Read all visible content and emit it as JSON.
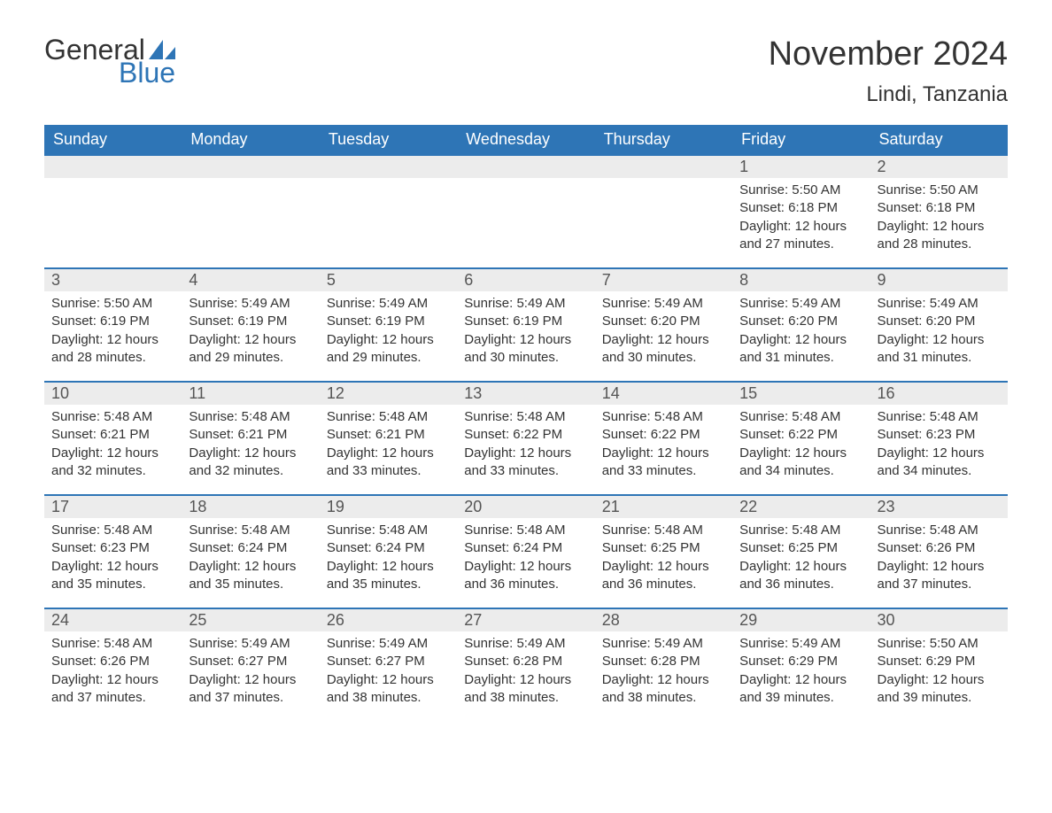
{
  "logo": {
    "word1": "General",
    "word2": "Blue"
  },
  "title": "November 2024",
  "location": "Lindi, Tanzania",
  "colors": {
    "brand_blue": "#2e75b6",
    "header_text": "#ffffff",
    "dayrow_bg": "#ececec",
    "text": "#333333",
    "muted": "#555555",
    "background": "#ffffff"
  },
  "columns": [
    "Sunday",
    "Monday",
    "Tuesday",
    "Wednesday",
    "Thursday",
    "Friday",
    "Saturday"
  ],
  "labels": {
    "sunrise": "Sunrise:",
    "sunset": "Sunset:",
    "daylight": "Daylight:"
  },
  "weeks": [
    [
      null,
      null,
      null,
      null,
      null,
      {
        "d": "1",
        "sr": "5:50 AM",
        "ss": "6:18 PM",
        "dl": "12 hours and 27 minutes."
      },
      {
        "d": "2",
        "sr": "5:50 AM",
        "ss": "6:18 PM",
        "dl": "12 hours and 28 minutes."
      }
    ],
    [
      {
        "d": "3",
        "sr": "5:50 AM",
        "ss": "6:19 PM",
        "dl": "12 hours and 28 minutes."
      },
      {
        "d": "4",
        "sr": "5:49 AM",
        "ss": "6:19 PM",
        "dl": "12 hours and 29 minutes."
      },
      {
        "d": "5",
        "sr": "5:49 AM",
        "ss": "6:19 PM",
        "dl": "12 hours and 29 minutes."
      },
      {
        "d": "6",
        "sr": "5:49 AM",
        "ss": "6:19 PM",
        "dl": "12 hours and 30 minutes."
      },
      {
        "d": "7",
        "sr": "5:49 AM",
        "ss": "6:20 PM",
        "dl": "12 hours and 30 minutes."
      },
      {
        "d": "8",
        "sr": "5:49 AM",
        "ss": "6:20 PM",
        "dl": "12 hours and 31 minutes."
      },
      {
        "d": "9",
        "sr": "5:49 AM",
        "ss": "6:20 PM",
        "dl": "12 hours and 31 minutes."
      }
    ],
    [
      {
        "d": "10",
        "sr": "5:48 AM",
        "ss": "6:21 PM",
        "dl": "12 hours and 32 minutes."
      },
      {
        "d": "11",
        "sr": "5:48 AM",
        "ss": "6:21 PM",
        "dl": "12 hours and 32 minutes."
      },
      {
        "d": "12",
        "sr": "5:48 AM",
        "ss": "6:21 PM",
        "dl": "12 hours and 33 minutes."
      },
      {
        "d": "13",
        "sr": "5:48 AM",
        "ss": "6:22 PM",
        "dl": "12 hours and 33 minutes."
      },
      {
        "d": "14",
        "sr": "5:48 AM",
        "ss": "6:22 PM",
        "dl": "12 hours and 33 minutes."
      },
      {
        "d": "15",
        "sr": "5:48 AM",
        "ss": "6:22 PM",
        "dl": "12 hours and 34 minutes."
      },
      {
        "d": "16",
        "sr": "5:48 AM",
        "ss": "6:23 PM",
        "dl": "12 hours and 34 minutes."
      }
    ],
    [
      {
        "d": "17",
        "sr": "5:48 AM",
        "ss": "6:23 PM",
        "dl": "12 hours and 35 minutes."
      },
      {
        "d": "18",
        "sr": "5:48 AM",
        "ss": "6:24 PM",
        "dl": "12 hours and 35 minutes."
      },
      {
        "d": "19",
        "sr": "5:48 AM",
        "ss": "6:24 PM",
        "dl": "12 hours and 35 minutes."
      },
      {
        "d": "20",
        "sr": "5:48 AM",
        "ss": "6:24 PM",
        "dl": "12 hours and 36 minutes."
      },
      {
        "d": "21",
        "sr": "5:48 AM",
        "ss": "6:25 PM",
        "dl": "12 hours and 36 minutes."
      },
      {
        "d": "22",
        "sr": "5:48 AM",
        "ss": "6:25 PM",
        "dl": "12 hours and 36 minutes."
      },
      {
        "d": "23",
        "sr": "5:48 AM",
        "ss": "6:26 PM",
        "dl": "12 hours and 37 minutes."
      }
    ],
    [
      {
        "d": "24",
        "sr": "5:48 AM",
        "ss": "6:26 PM",
        "dl": "12 hours and 37 minutes."
      },
      {
        "d": "25",
        "sr": "5:49 AM",
        "ss": "6:27 PM",
        "dl": "12 hours and 37 minutes."
      },
      {
        "d": "26",
        "sr": "5:49 AM",
        "ss": "6:27 PM",
        "dl": "12 hours and 38 minutes."
      },
      {
        "d": "27",
        "sr": "5:49 AM",
        "ss": "6:28 PM",
        "dl": "12 hours and 38 minutes."
      },
      {
        "d": "28",
        "sr": "5:49 AM",
        "ss": "6:28 PM",
        "dl": "12 hours and 38 minutes."
      },
      {
        "d": "29",
        "sr": "5:49 AM",
        "ss": "6:29 PM",
        "dl": "12 hours and 39 minutes."
      },
      {
        "d": "30",
        "sr": "5:50 AM",
        "ss": "6:29 PM",
        "dl": "12 hours and 39 minutes."
      }
    ]
  ]
}
